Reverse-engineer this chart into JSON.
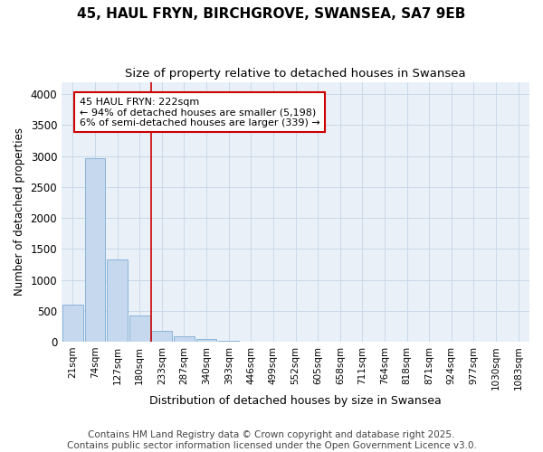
{
  "title_line1": "45, HAUL FRYN, BIRCHGROVE, SWANSEA, SA7 9EB",
  "title_line2": "Size of property relative to detached houses in Swansea",
  "xlabel": "Distribution of detached houses by size in Swansea",
  "ylabel": "Number of detached properties",
  "categories": [
    "21sqm",
    "74sqm",
    "127sqm",
    "180sqm",
    "233sqm",
    "287sqm",
    "340sqm",
    "393sqm",
    "446sqm",
    "499sqm",
    "552sqm",
    "605sqm",
    "658sqm",
    "711sqm",
    "764sqm",
    "818sqm",
    "871sqm",
    "924sqm",
    "977sqm",
    "1030sqm",
    "1083sqm"
  ],
  "values": [
    600,
    2970,
    1330,
    430,
    175,
    90,
    45,
    20,
    0,
    0,
    0,
    0,
    0,
    0,
    0,
    0,
    0,
    0,
    0,
    0,
    0
  ],
  "bar_color": "#c5d8ee",
  "bar_edgecolor": "#8ab4d8",
  "bar_linewidth": 0.7,
  "vline_x": 3.5,
  "vline_color": "#cc0000",
  "vline_linewidth": 1.2,
  "annotation_text": "45 HAUL FRYN: 222sqm\n← 94% of detached houses are smaller (5,198)\n6% of semi-detached houses are larger (339) →",
  "annotation_box_edgecolor": "#cc0000",
  "annotation_box_facecolor": "white",
  "annotation_fontsize": 8,
  "ylim": [
    0,
    4200
  ],
  "yticks": [
    0,
    500,
    1000,
    1500,
    2000,
    2500,
    3000,
    3500,
    4000
  ],
  "grid_color": "#c8d8e8",
  "background_color": "#eaf0f8",
  "footer_line1": "Contains HM Land Registry data © Crown copyright and database right 2025.",
  "footer_line2": "Contains public sector information licensed under the Open Government Licence v3.0.",
  "footer_fontsize": 7.5,
  "title_fontsize1": 11,
  "title_fontsize2": 9.5,
  "xlabel_fontsize": 9,
  "ylabel_fontsize": 8.5
}
